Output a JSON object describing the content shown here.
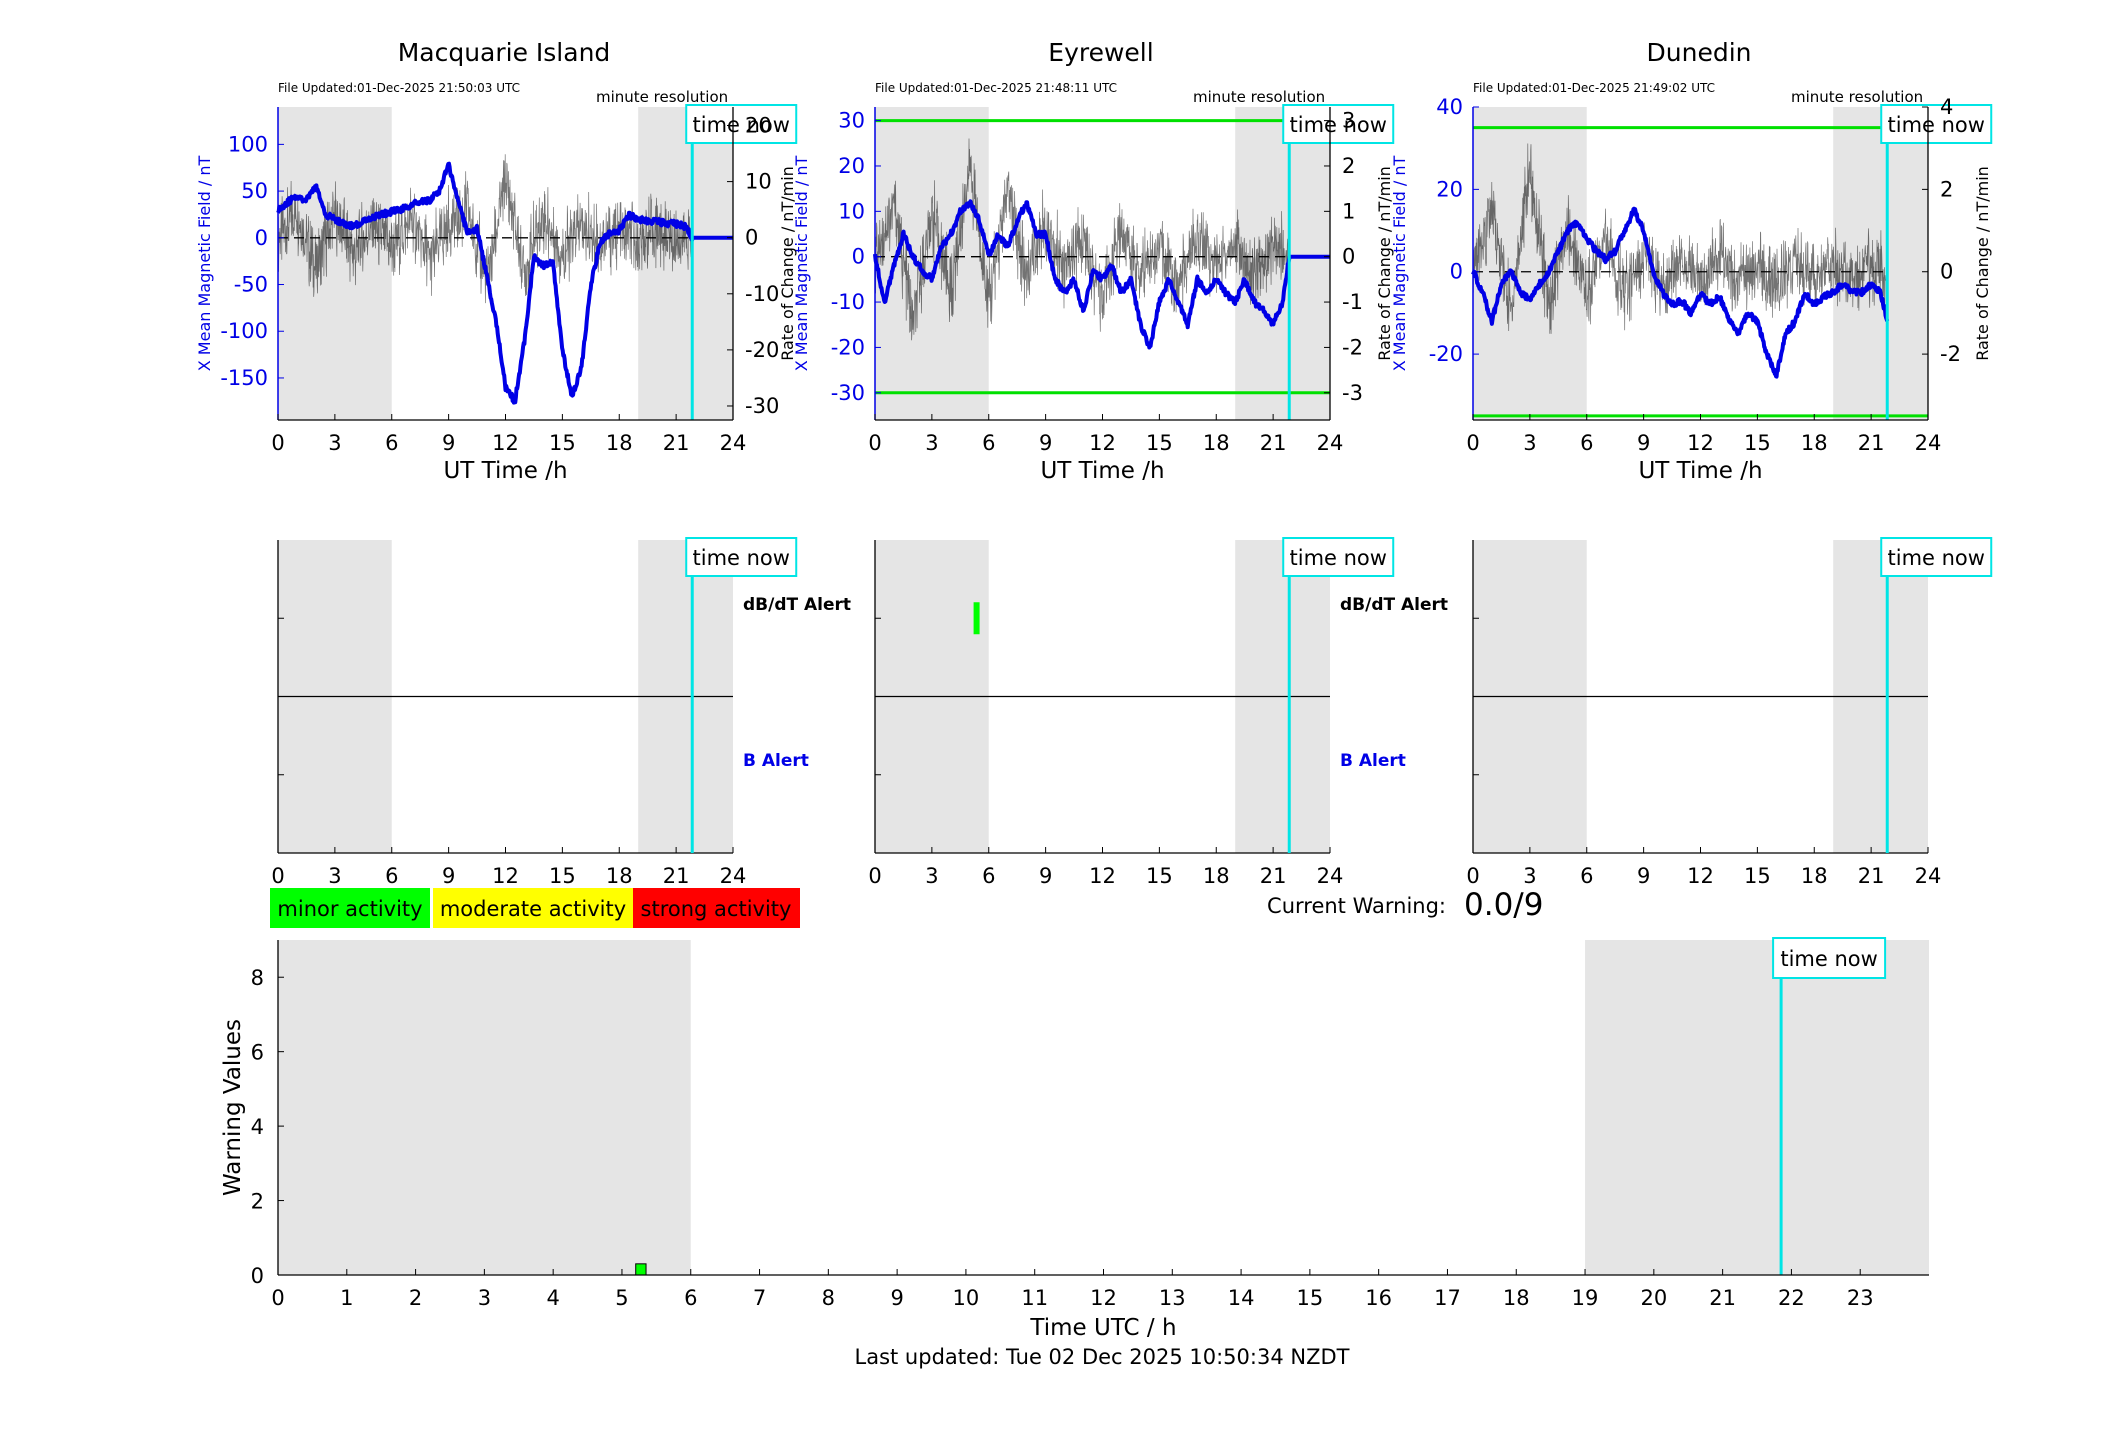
{
  "stations": [
    {
      "title": "Macquarie Island",
      "file_updated": "File Updated:01-Dec-2025 21:50:03 UTC",
      "resolution": "minute resolution",
      "time_now_label": "time now",
      "xlabel": "UT Time /h",
      "ylabel_left": "X Mean Magnetic Field / nT",
      "ylabel_right": "Rate of Change / nT/min",
      "xticks": [
        "0",
        "3",
        "6",
        "9",
        "12",
        "15",
        "18",
        "21",
        "24"
      ],
      "yticks_left": [
        "100",
        "50",
        "0",
        "-50",
        "-100",
        "-150"
      ],
      "yticks_right": [
        "20",
        "10",
        "0",
        "-10",
        "-20",
        "-30"
      ],
      "dbdt_alert_label": "dB/dT Alert",
      "b_alert_label": "B Alert"
    },
    {
      "title": "Eyrewell",
      "file_updated": "File Updated:01-Dec-2025 21:48:11 UTC",
      "resolution": "minute resolution",
      "time_now_label": "time now",
      "xlabel": "UT Time /h",
      "ylabel_left": "X Mean Magnetic Field / nT",
      "ylabel_right": "Rate of Change / nT/min",
      "xticks": [
        "0",
        "3",
        "6",
        "9",
        "12",
        "15",
        "18",
        "21",
        "24"
      ],
      "yticks_left": [
        "30",
        "20",
        "10",
        "0",
        "-10",
        "-20",
        "-30"
      ],
      "yticks_right": [
        "3",
        "2",
        "1",
        "0",
        "-1",
        "-2",
        "-3"
      ],
      "dbdt_alert_label": "dB/dT Alert",
      "b_alert_label": "B Alert"
    },
    {
      "title": "Dunedin",
      "file_updated": "File Updated:01-Dec-2025 21:49:02 UTC",
      "resolution": "minute resolution",
      "time_now_label": "time now",
      "xlabel": "UT Time /h",
      "ylabel_left": "X Mean Magnetic Field / nT",
      "ylabel_right": "Rate of Change / nT/min",
      "xticks": [
        "0",
        "3",
        "6",
        "9",
        "12",
        "15",
        "18",
        "21",
        "24"
      ],
      "yticks_left": [
        "40",
        "20",
        "0",
        "-20"
      ],
      "yticks_right": [
        "4",
        "2",
        "0",
        "-2"
      ],
      "dbdt_alert_label": "",
      "b_alert_label": ""
    }
  ],
  "legend": {
    "minor": "minor activity",
    "moderate": "moderate activity",
    "strong": "strong activity"
  },
  "current_warning": {
    "label": "Current Warning:",
    "value": "0.0/9"
  },
  "warning_plot": {
    "ylabel": "Warning Values",
    "xlabel": "Time UTC / h",
    "time_now_label": "time now",
    "xticks": [
      "0",
      "1",
      "2",
      "3",
      "4",
      "5",
      "6",
      "7",
      "8",
      "9",
      "10",
      "11",
      "12",
      "13",
      "14",
      "15",
      "16",
      "17",
      "18",
      "19",
      "20",
      "21",
      "22",
      "23"
    ],
    "yticks": [
      "0",
      "2",
      "4",
      "6",
      "8"
    ]
  },
  "last_updated": "Last updated: Tue 02 Dec 2025 10:50:34 NZDT",
  "colors": {
    "field": "#0000e6",
    "rate": "#000000",
    "threshold": "#00e000",
    "now_line": "#00e5e5",
    "shade": "#e5e5e5",
    "minor": "#00ff00",
    "moderate": "#ffff00",
    "strong": "#ff0000"
  },
  "chart_data": [
    {
      "type": "line",
      "station": "Macquarie Island",
      "xlim": [
        0,
        24
      ],
      "ylim_left": [
        -195,
        140
      ],
      "ylim_right": [
        -32.5,
        23.3
      ],
      "night_shading_hours": [
        [
          0,
          6
        ],
        [
          19,
          24
        ]
      ],
      "time_now_hour": 21.85,
      "thresholds_left": [],
      "series": [
        {
          "axis": "left",
          "x": [
            0,
            0.5,
            1,
            1.5,
            2,
            2.5,
            3,
            3.5,
            4,
            4.5,
            5,
            5.5,
            6,
            6.5,
            7,
            7.5,
            8,
            8.5,
            9,
            9.5,
            10,
            10.5,
            11,
            11.5,
            12,
            12.5,
            13,
            13.5,
            14,
            14.5,
            15,
            15.5,
            16,
            16.5,
            17,
            17.5,
            18,
            18.5,
            19,
            19.5,
            20,
            20.5,
            21,
            21.5,
            21.85,
            24
          ],
          "y": [
            30,
            38,
            45,
            40,
            55,
            25,
            20,
            15,
            12,
            18,
            22,
            25,
            28,
            30,
            35,
            38,
            40,
            50,
            78,
            40,
            5,
            10,
            -40,
            -90,
            -160,
            -175,
            -110,
            -20,
            -30,
            -25,
            -120,
            -170,
            -140,
            -50,
            -5,
            5,
            8,
            25,
            20,
            18,
            18,
            15,
            15,
            12,
            0,
            0
          ]
        },
        {
          "axis": "right",
          "x": [
            0,
            1,
            2,
            3,
            4,
            5,
            6,
            7,
            8,
            9,
            10,
            11,
            12,
            13,
            14,
            15,
            16,
            17,
            18,
            19,
            20,
            21,
            21.85
          ],
          "y": [
            0,
            5,
            -6,
            4,
            -3,
            2,
            -2,
            3,
            -4,
            2,
            5,
            -8,
            10,
            -6,
            4,
            -3,
            2,
            -1,
            1,
            -1,
            1,
            -0.5,
            0
          ]
        }
      ]
    },
    {
      "type": "line",
      "station": "Eyrewell",
      "xlim": [
        0,
        24
      ],
      "ylim_left": [
        -36,
        33
      ],
      "ylim_right": [
        -3.6,
        3.3
      ],
      "night_shading_hours": [
        [
          0,
          6
        ],
        [
          19,
          24
        ]
      ],
      "time_now_hour": 21.85,
      "thresholds_left": [
        30,
        -30
      ],
      "series": [
        {
          "axis": "left",
          "x": [
            0,
            0.5,
            1,
            1.5,
            2,
            2.5,
            3,
            3.5,
            4,
            4.5,
            5,
            5.5,
            6,
            6.5,
            7,
            7.5,
            8,
            8.5,
            9,
            9.5,
            10,
            10.5,
            11,
            11.5,
            12,
            12.5,
            13,
            13.5,
            14,
            14.5,
            15,
            15.5,
            16,
            16.5,
            17,
            17.5,
            18,
            18.5,
            19,
            19.5,
            20,
            20.5,
            21,
            21.5,
            21.85,
            24
          ],
          "y": [
            0,
            -10,
            -2,
            5,
            0,
            -3,
            -5,
            2,
            5,
            10,
            12,
            8,
            0,
            5,
            2,
            8,
            12,
            5,
            5,
            -5,
            -8,
            -5,
            -12,
            -3,
            -5,
            -2,
            -8,
            -5,
            -15,
            -20,
            -10,
            -5,
            -10,
            -15,
            -5,
            -8,
            -5,
            -8,
            -10,
            -5,
            -10,
            -12,
            -15,
            -10,
            0,
            0
          ]
        },
        {
          "axis": "right",
          "x": [
            0,
            1,
            2,
            3,
            4,
            5,
            6,
            7,
            8,
            9,
            10,
            11,
            12,
            13,
            14,
            15,
            16,
            17,
            18,
            19,
            20,
            21,
            21.85
          ],
          "y": [
            0,
            1.2,
            -1.5,
            1,
            -0.8,
            2,
            -1,
            1.5,
            -0.5,
            0.8,
            -0.3,
            0.5,
            -1,
            0.6,
            -0.4,
            0.3,
            -0.6,
            0.4,
            -0.2,
            0.3,
            -0.4,
            0.2,
            0
          ]
        }
      ]
    },
    {
      "type": "line",
      "station": "Dunedin",
      "xlim": [
        0,
        24
      ],
      "ylim_left": [
        -36,
        40
      ],
      "ylim_right": [
        -3.6,
        4
      ],
      "night_shading_hours": [
        [
          0,
          6
        ],
        [
          19,
          24
        ]
      ],
      "time_now_hour": 21.85,
      "thresholds_left": [
        35,
        -35
      ],
      "series": [
        {
          "axis": "left",
          "x": [
            0,
            0.5,
            1,
            1.5,
            2,
            2.5,
            3,
            3.5,
            4,
            4.5,
            5,
            5.5,
            6,
            6.5,
            7,
            7.5,
            8,
            8.5,
            9,
            9.5,
            10,
            10.5,
            11,
            11.5,
            12,
            12.5,
            13,
            13.5,
            14,
            14.5,
            15,
            15.5,
            16,
            16.5,
            17,
            17.5,
            18,
            18.5,
            19,
            19.5,
            20,
            20.5,
            21,
            21.5,
            21.85
          ],
          "y": [
            0,
            -5,
            -12,
            -3,
            0,
            -5,
            -7,
            -3,
            0,
            5,
            10,
            12,
            8,
            5,
            3,
            5,
            10,
            15,
            10,
            0,
            -5,
            -8,
            -7,
            -10,
            -5,
            -8,
            -6,
            -12,
            -15,
            -10,
            -12,
            -20,
            -25,
            -15,
            -12,
            -5,
            -8,
            -6,
            -5,
            -3,
            -5,
            -5,
            -3,
            -5,
            -12
          ]
        },
        {
          "axis": "right",
          "x": [
            0,
            1,
            2,
            3,
            4,
            5,
            6,
            7,
            8,
            9,
            10,
            11,
            12,
            13,
            14,
            15,
            16,
            17,
            18,
            19,
            20,
            21,
            21.85
          ],
          "y": [
            0,
            1.5,
            -1,
            2.5,
            -0.8,
            1,
            -0.5,
            0.8,
            -0.6,
            0.5,
            -0.4,
            0.3,
            -0.2,
            0.4,
            -0.3,
            0.2,
            -0.4,
            0.3,
            -0.2,
            0.1,
            -0.2,
            0.1,
            0
          ]
        }
      ]
    },
    {
      "type": "bar",
      "title": "Warning Values",
      "xlim": [
        0,
        24
      ],
      "ylim": [
        0,
        9
      ],
      "night_shading_hours": [
        [
          0,
          6
        ],
        [
          19,
          24
        ]
      ],
      "time_now_hour": 21.85,
      "bars": [
        {
          "x_start": 5.2,
          "x_end": 5.35,
          "value": 0.3,
          "level": "minor"
        }
      ]
    }
  ]
}
